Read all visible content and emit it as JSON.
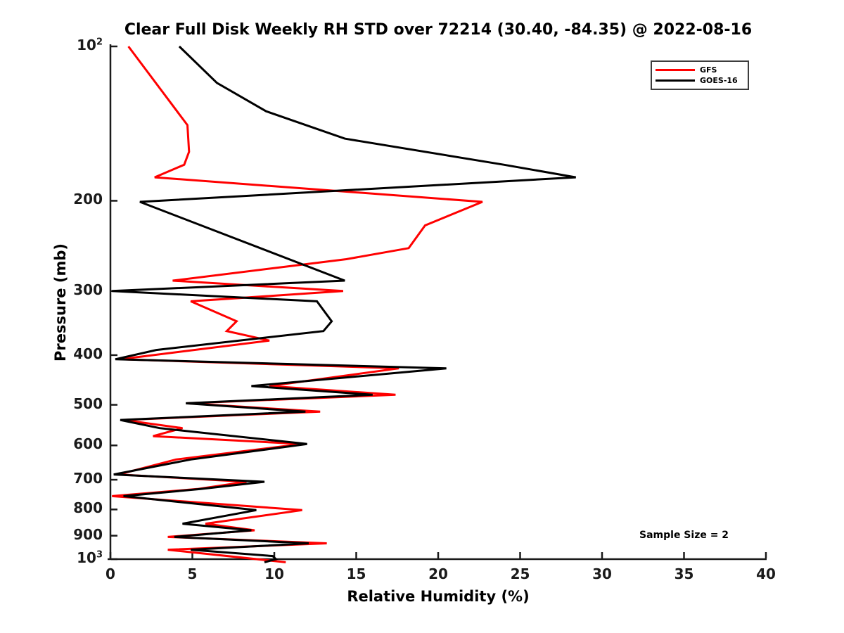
{
  "chart_data": {
    "type": "line",
    "title": "Clear Full Disk Weekly RH STD over 72214 (30.40, -84.35) @ 2022-08-16",
    "xlabel": "Relative Humidity (%)",
    "ylabel": "Pressure (mb)",
    "xlim": [
      0,
      40
    ],
    "ylim": [
      100,
      1000
    ],
    "y_scale": "log",
    "y_inverted": true,
    "grid": false,
    "legend_position": "upper right",
    "annotation": "Sample Size = 2",
    "xticks": [
      0,
      5,
      10,
      15,
      20,
      25,
      30,
      35,
      40
    ],
    "yticks": [
      {
        "value": 100,
        "label": "10^2"
      },
      {
        "value": 200,
        "label": "200"
      },
      {
        "value": 300,
        "label": "300"
      },
      {
        "value": 400,
        "label": "400"
      },
      {
        "value": 500,
        "label": "500"
      },
      {
        "value": 600,
        "label": "600"
      },
      {
        "value": 700,
        "label": "700"
      },
      {
        "value": 800,
        "label": "800"
      },
      {
        "value": 900,
        "label": "900"
      },
      {
        "value": 1000,
        "label": "10^3"
      }
    ],
    "series": [
      {
        "name": "GFS",
        "color": "#ff0000",
        "points_format": [
          "pressure_mb",
          "rh_std_percent"
        ],
        "points": [
          [
            100.0,
            1.1
          ],
          [
            142.4,
            4.7
          ],
          [
            160.5,
            4.8
          ],
          [
            170.1,
            4.5
          ],
          [
            180.0,
            2.7
          ],
          [
            201.0,
            22.7
          ],
          [
            223.4,
            19.2
          ],
          [
            247.4,
            18.2
          ],
          [
            260.0,
            14.4
          ],
          [
            286.3,
            3.8
          ],
          [
            300.0,
            14.2
          ],
          [
            314.1,
            4.9
          ],
          [
            343.6,
            7.7
          ],
          [
            359.0,
            7.1
          ],
          [
            374.7,
            9.7
          ],
          [
            407.5,
            0.6
          ],
          [
            424.5,
            17.6
          ],
          [
            459.7,
            9.7
          ],
          [
            478.0,
            17.4
          ],
          [
            496.6,
            4.7
          ],
          [
            515.7,
            12.8
          ],
          [
            535.2,
            0.8
          ],
          [
            555.2,
            4.4
          ],
          [
            575.5,
            2.6
          ],
          [
            596.3,
            11.7
          ],
          [
            639.1,
            4.0
          ],
          [
            683.7,
            0.5
          ],
          [
            706.6,
            8.3
          ],
          [
            729.9,
            5.3
          ],
          [
            753.6,
            0.1
          ],
          [
            802.4,
            11.7
          ],
          [
            852.8,
            5.8
          ],
          [
            878.6,
            8.8
          ],
          [
            904.9,
            3.5
          ],
          [
            931.5,
            13.2
          ],
          [
            958.6,
            3.5
          ],
          [
            1013.9,
            10.7
          ]
        ]
      },
      {
        "name": "GOES-16",
        "color": "#000000",
        "points_format": [
          "pressure_mb",
          "rh_std_percent"
        ],
        "points": [
          [
            100.0,
            4.2
          ],
          [
            117.8,
            6.5
          ],
          [
            133.8,
            9.5
          ],
          [
            151.3,
            14.3
          ],
          [
            170.1,
            24.0
          ],
          [
            180.0,
            28.4
          ],
          [
            201.0,
            1.8
          ],
          [
            286.3,
            14.3
          ],
          [
            300.0,
            0.1
          ],
          [
            314.1,
            12.6
          ],
          [
            343.6,
            13.5
          ],
          [
            359.0,
            13.0
          ],
          [
            390.9,
            2.8
          ],
          [
            407.5,
            0.3
          ],
          [
            424.5,
            20.5
          ],
          [
            459.7,
            8.6
          ],
          [
            478.0,
            16.0
          ],
          [
            496.6,
            4.6
          ],
          [
            515.7,
            11.9
          ],
          [
            535.2,
            0.6
          ],
          [
            555.2,
            3.0
          ],
          [
            596.3,
            12.0
          ],
          [
            639.1,
            4.9
          ],
          [
            683.7,
            0.2
          ],
          [
            706.6,
            9.4
          ],
          [
            729.9,
            5.5
          ],
          [
            753.6,
            0.8
          ],
          [
            802.4,
            8.9
          ],
          [
            852.8,
            4.4
          ],
          [
            878.6,
            8.6
          ],
          [
            904.9,
            3.9
          ],
          [
            931.5,
            12.1
          ],
          [
            958.6,
            4.9
          ],
          [
            986.1,
            9.9
          ],
          [
            1000.0,
            10.1
          ],
          [
            1013.9,
            9.4
          ]
        ]
      }
    ]
  }
}
